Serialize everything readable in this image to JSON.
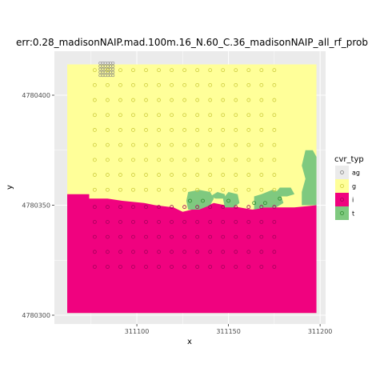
{
  "chart_data": {
    "type": "scatter",
    "title": "err:0.28_madisonNAIP.mad.100m.16_N.60_C.36_madisonNAIP_all_rf_prob",
    "xlabel": "x",
    "ylabel": "y",
    "xlim": [
      311055,
      311203
    ],
    "ylim": [
      4780296,
      4780420
    ],
    "x_ticks": [
      311100,
      311150,
      311200
    ],
    "x_tick_labels": [
      "311100",
      "311150",
      "311200"
    ],
    "y_ticks": [
      4780300,
      4780350,
      4780400
    ],
    "y_tick_labels": [
      "4780300",
      "4780350",
      "4780400"
    ],
    "grid": true,
    "legend": {
      "title": "cvr_typ",
      "position": "right",
      "entries": [
        {
          "key": "ag",
          "label": "ag",
          "fill": "#ebebeb",
          "point": "#7f7f7f"
        },
        {
          "key": "g",
          "label": "g",
          "fill": "#ffff99",
          "point": "#cccc3d"
        },
        {
          "key": "i",
          "label": "i",
          "fill": "#f0027f",
          "point": "#a3005a"
        },
        {
          "key": "t",
          "label": "t",
          "fill": "#7fc97f",
          "point": "#2e8b2e"
        }
      ]
    },
    "raster": {
      "extent_x": [
        311062,
        311198
      ],
      "extent_y": [
        4780301,
        4780414
      ],
      "impervious_boundary": [
        [
          311062,
          4780355
        ],
        [
          311074,
          4780355
        ],
        [
          311074,
          4780353
        ],
        [
          311084,
          4780353
        ],
        [
          311092,
          4780352
        ],
        [
          311104,
          4780351
        ],
        [
          311110,
          4780350
        ],
        [
          311120,
          4780349
        ],
        [
          311125,
          4780347
        ],
        [
          311130,
          4780348
        ],
        [
          311136,
          4780349
        ],
        [
          311142,
          4780351
        ],
        [
          311148,
          4780350
        ],
        [
          311156,
          4780349
        ],
        [
          311163,
          4780348
        ],
        [
          311170,
          4780349
        ],
        [
          311178,
          4780349
        ],
        [
          311186,
          4780349
        ],
        [
          311198,
          4780350
        ]
      ],
      "tree_patches": [
        [
          [
            311128,
            4780348
          ],
          [
            311127,
            4780352
          ],
          [
            311128,
            4780356
          ],
          [
            311134,
            4780357
          ],
          [
            311140,
            4780356
          ],
          [
            311142,
            4780353
          ],
          [
            311140,
            4780350
          ],
          [
            311134,
            4780348
          ]
        ],
        [
          [
            311140,
            4780354
          ],
          [
            311144,
            4780356
          ],
          [
            311148,
            4780355
          ],
          [
            311148,
            4780353
          ],
          [
            311143,
            4780353
          ]
        ],
        [
          [
            311148,
            4780349
          ],
          [
            311147,
            4780353
          ],
          [
            311150,
            4780356
          ],
          [
            311155,
            4780355
          ],
          [
            311156,
            4780351
          ],
          [
            311153,
            4780349
          ]
        ],
        [
          [
            311164,
            4780348
          ],
          [
            311164,
            4780354
          ],
          [
            311168,
            4780355
          ],
          [
            311174,
            4780357
          ],
          [
            311178,
            4780356
          ],
          [
            311180,
            4780351
          ],
          [
            311176,
            4780349
          ],
          [
            311170,
            4780349
          ]
        ],
        [
          [
            311174,
            4780354
          ],
          [
            311178,
            4780358
          ],
          [
            311184,
            4780358
          ],
          [
            311186,
            4780355
          ],
          [
            311182,
            4780354
          ]
        ],
        [
          [
            311190,
            4780350
          ],
          [
            311190,
            4780356
          ],
          [
            311192,
            4780362
          ],
          [
            311190,
            4780368
          ],
          [
            311192,
            4780375
          ],
          [
            311196,
            4780375
          ],
          [
            311198,
            4780372
          ],
          [
            311198,
            4780350
          ]
        ]
      ]
    },
    "series": [
      {
        "name": "ag",
        "grid_points": {
          "x_start": 311080,
          "x_end": 311088,
          "x_step": 1.4,
          "y_start": 4780409,
          "y_end": 4780416,
          "y_step": 1.4
        }
      },
      {
        "name": "g",
        "grid_points": {
          "x_start": 311077,
          "x_end": 311180,
          "x_step": 7,
          "y_start": 4780357,
          "y_end": 4780413,
          "y_step": 6.8
        }
      },
      {
        "name": "t",
        "points": [
          [
            311129,
            4780352
          ],
          [
            311136,
            4780352
          ],
          [
            311150,
            4780352
          ],
          [
            311170,
            4780351
          ],
          [
            311178,
            4780353
          ],
          [
            311164,
            4780351
          ]
        ]
      },
      {
        "name": "i",
        "grid_points": {
          "x_start": 311077,
          "x_end": 311175,
          "x_step": 7,
          "y_start": 4780322,
          "y_end": 4780351,
          "y_step": 6.8
        }
      }
    ]
  }
}
